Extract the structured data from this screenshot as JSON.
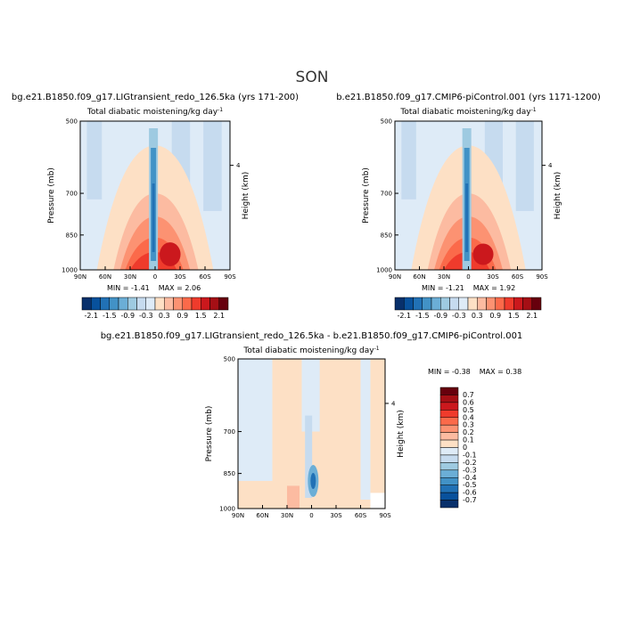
{
  "page": {
    "season_title": "SON"
  },
  "chart_data": [
    {
      "id": "panel_lig",
      "type": "heatmap",
      "title": "bg.e21.B1850.f09_g17.LIGtransient_redo_126.5ka (yrs 171-200)",
      "subtitle": "Total diabatic moistening/kg day",
      "subtitle_sup": "-1",
      "xlabel": "",
      "ylabel": "Pressure (mb)",
      "y2label": "Height (km)",
      "x_ticks": [
        "90N",
        "60N",
        "30N",
        "0",
        "30S",
        "60S",
        "90S"
      ],
      "y_ticks": [
        "500",
        "700",
        "850",
        "1000"
      ],
      "y_tick_values": [
        500,
        700,
        850,
        1000
      ],
      "y2_ticks": [
        "4"
      ],
      "y2_tick_values": [
        4
      ],
      "xlim": [
        90,
        -90
      ],
      "ylim": [
        1000,
        500
      ],
      "min_label": "MIN =",
      "min_value": "-1.41",
      "max_label": "MAX =",
      "max_value": "2.06",
      "colorbar": {
        "orientation": "horizontal",
        "labels": [
          "-2.1",
          "-1.5",
          "-0.9",
          "-0.3",
          "0.3",
          "0.9",
          "1.5",
          "2.1"
        ],
        "levels": [
          -2.1,
          -1.8,
          -1.5,
          -1.2,
          -0.9,
          -0.6,
          -0.3,
          0,
          0.3,
          0.6,
          0.9,
          1.2,
          1.5,
          1.8,
          2.1
        ]
      }
    },
    {
      "id": "panel_ctrl",
      "type": "heatmap",
      "title": "b.e21.B1850.f09_g17.CMIP6-piControl.001 (yrs 1171-1200)",
      "subtitle": "Total diabatic moistening/kg day",
      "subtitle_sup": "-1",
      "xlabel": "",
      "ylabel": "Pressure (mb)",
      "y2label": "Height (km)",
      "x_ticks": [
        "90N",
        "60N",
        "30N",
        "0",
        "30S",
        "60S",
        "90S"
      ],
      "y_ticks": [
        "500",
        "700",
        "850",
        "1000"
      ],
      "y_tick_values": [
        500,
        700,
        850,
        1000
      ],
      "y2_ticks": [
        "4"
      ],
      "y2_tick_values": [
        4
      ],
      "xlim": [
        90,
        -90
      ],
      "ylim": [
        1000,
        500
      ],
      "min_label": "MIN =",
      "min_value": "-1.21",
      "max_label": "MAX =",
      "max_value": "1.92",
      "colorbar": {
        "orientation": "horizontal",
        "labels": [
          "-2.1",
          "-1.5",
          "-0.9",
          "-0.3",
          "0.3",
          "0.9",
          "1.5",
          "2.1"
        ],
        "levels": [
          -2.1,
          -1.8,
          -1.5,
          -1.2,
          -0.9,
          -0.6,
          -0.3,
          0,
          0.3,
          0.6,
          0.9,
          1.2,
          1.5,
          1.8,
          2.1
        ]
      }
    },
    {
      "id": "panel_diff",
      "type": "heatmap",
      "title": "bg.e21.B1850.f09_g17.LIGtransient_redo_126.5ka - b.e21.B1850.f09_g17.CMIP6-piControl.001",
      "subtitle": "Total diabatic moistening/kg day",
      "subtitle_sup": "-1",
      "xlabel": "",
      "ylabel": "Pressure (mb)",
      "y2label": "Height (km)",
      "x_ticks": [
        "90N",
        "60N",
        "30N",
        "0",
        "30S",
        "60S",
        "90S"
      ],
      "y_ticks": [
        "500",
        "700",
        "850",
        "1000"
      ],
      "y_tick_values": [
        500,
        700,
        850,
        1000
      ],
      "y2_ticks": [
        "4"
      ],
      "y2_tick_values": [
        4
      ],
      "xlim": [
        90,
        -90
      ],
      "ylim": [
        1000,
        500
      ],
      "min_label": "MIN =",
      "min_value": "-0.38",
      "max_label": "MAX =",
      "max_value": "0.38",
      "colorbar": {
        "orientation": "vertical",
        "labels": [
          "0.7",
          "0.6",
          "0.5",
          "0.4",
          "0.3",
          "0.2",
          "0.1",
          "0",
          "-0.1",
          "-0.2",
          "-0.3",
          "-0.4",
          "-0.5",
          "-0.6",
          "-0.7"
        ],
        "levels": [
          0.7,
          0.6,
          0.5,
          0.4,
          0.3,
          0.2,
          0.1,
          0,
          -0.1,
          -0.2,
          -0.3,
          -0.4,
          -0.5,
          -0.6,
          -0.7
        ]
      }
    }
  ],
  "palette": {
    "blue_red_16": [
      "#08306b",
      "#08519c",
      "#2171b5",
      "#4292c6",
      "#6baed6",
      "#9ecae1",
      "#c6dbef",
      "#deebf7",
      "#fde0c5",
      "#fcbba1",
      "#fc9272",
      "#fb6a4a",
      "#ef3b2c",
      "#cb181d",
      "#a50f15",
      "#67000d"
    ]
  }
}
